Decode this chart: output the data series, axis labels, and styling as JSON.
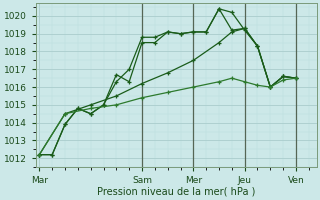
{
  "background_color": "#cce8e8",
  "grid_color_major": "#aacccc",
  "grid_color_minor": "#bbdddd",
  "line_colors": [
    "#1a5c1a",
    "#1a5c1a",
    "#1a5c1a",
    "#2d7a2d"
  ],
  "xlabel": "Pression niveau de la mer( hPa )",
  "ylim": [
    1011.5,
    1020.7
  ],
  "yticks": [
    1012,
    1013,
    1014,
    1015,
    1016,
    1017,
    1018,
    1019,
    1020
  ],
  "xtick_labels": [
    "Mar",
    "Sam",
    "Mer",
    "Jeu",
    "Ven"
  ],
  "xtick_positions": [
    0,
    4,
    6,
    8,
    10
  ],
  "xlim": [
    -0.15,
    10.8
  ],
  "lines": [
    {
      "x": [
        0,
        0.5,
        1.0,
        1.5,
        2.0,
        2.5,
        3.0,
        3.5,
        4.0,
        4.5,
        5.0,
        5.5,
        6.0,
        6.5,
        7.0,
        7.5,
        8.0,
        8.5,
        9.0,
        9.5,
        10.0
      ],
      "y": [
        1012.2,
        1012.2,
        1013.9,
        1014.8,
        1014.5,
        1015.0,
        1016.3,
        1017.0,
        1018.8,
        1018.8,
        1019.1,
        1019.0,
        1019.1,
        1019.1,
        1020.4,
        1020.2,
        1019.2,
        1018.3,
        1016.0,
        1016.6,
        1016.5
      ]
    },
    {
      "x": [
        0,
        0.5,
        1.0,
        1.5,
        2.0,
        2.5,
        3.0,
        3.5,
        4.0,
        4.5,
        5.0,
        5.5,
        6.0,
        6.5,
        7.0,
        7.5,
        8.0,
        8.5,
        9.0,
        9.5,
        10.0
      ],
      "y": [
        1012.2,
        1012.2,
        1013.9,
        1014.8,
        1014.5,
        1015.0,
        1016.7,
        1016.3,
        1018.5,
        1018.5,
        1019.1,
        1019.0,
        1019.1,
        1019.1,
        1020.4,
        1019.2,
        1019.3,
        1018.3,
        1016.0,
        1016.6,
        1016.5
      ]
    },
    {
      "x": [
        0,
        1.0,
        2.0,
        3.0,
        4.0,
        5.0,
        6.0,
        7.0,
        7.5,
        8.0,
        8.5,
        9.0,
        9.5,
        10.0
      ],
      "y": [
        1012.2,
        1014.5,
        1015.0,
        1015.5,
        1016.2,
        1016.8,
        1017.5,
        1018.5,
        1019.1,
        1019.3,
        1018.3,
        1016.0,
        1016.6,
        1016.5
      ]
    },
    {
      "x": [
        0,
        1.0,
        2.0,
        3.0,
        4.0,
        5.0,
        6.0,
        7.0,
        7.5,
        8.0,
        8.5,
        9.0,
        9.5,
        10.0
      ],
      "y": [
        1012.2,
        1014.5,
        1014.8,
        1015.0,
        1015.4,
        1015.7,
        1016.0,
        1016.3,
        1016.5,
        1016.3,
        1016.1,
        1016.0,
        1016.4,
        1016.5
      ]
    }
  ],
  "vlines_x": [
    4,
    6,
    8,
    10
  ],
  "vline_color": "#556655",
  "marker": "+",
  "marker_size": 3.5,
  "linewidth": 0.9
}
